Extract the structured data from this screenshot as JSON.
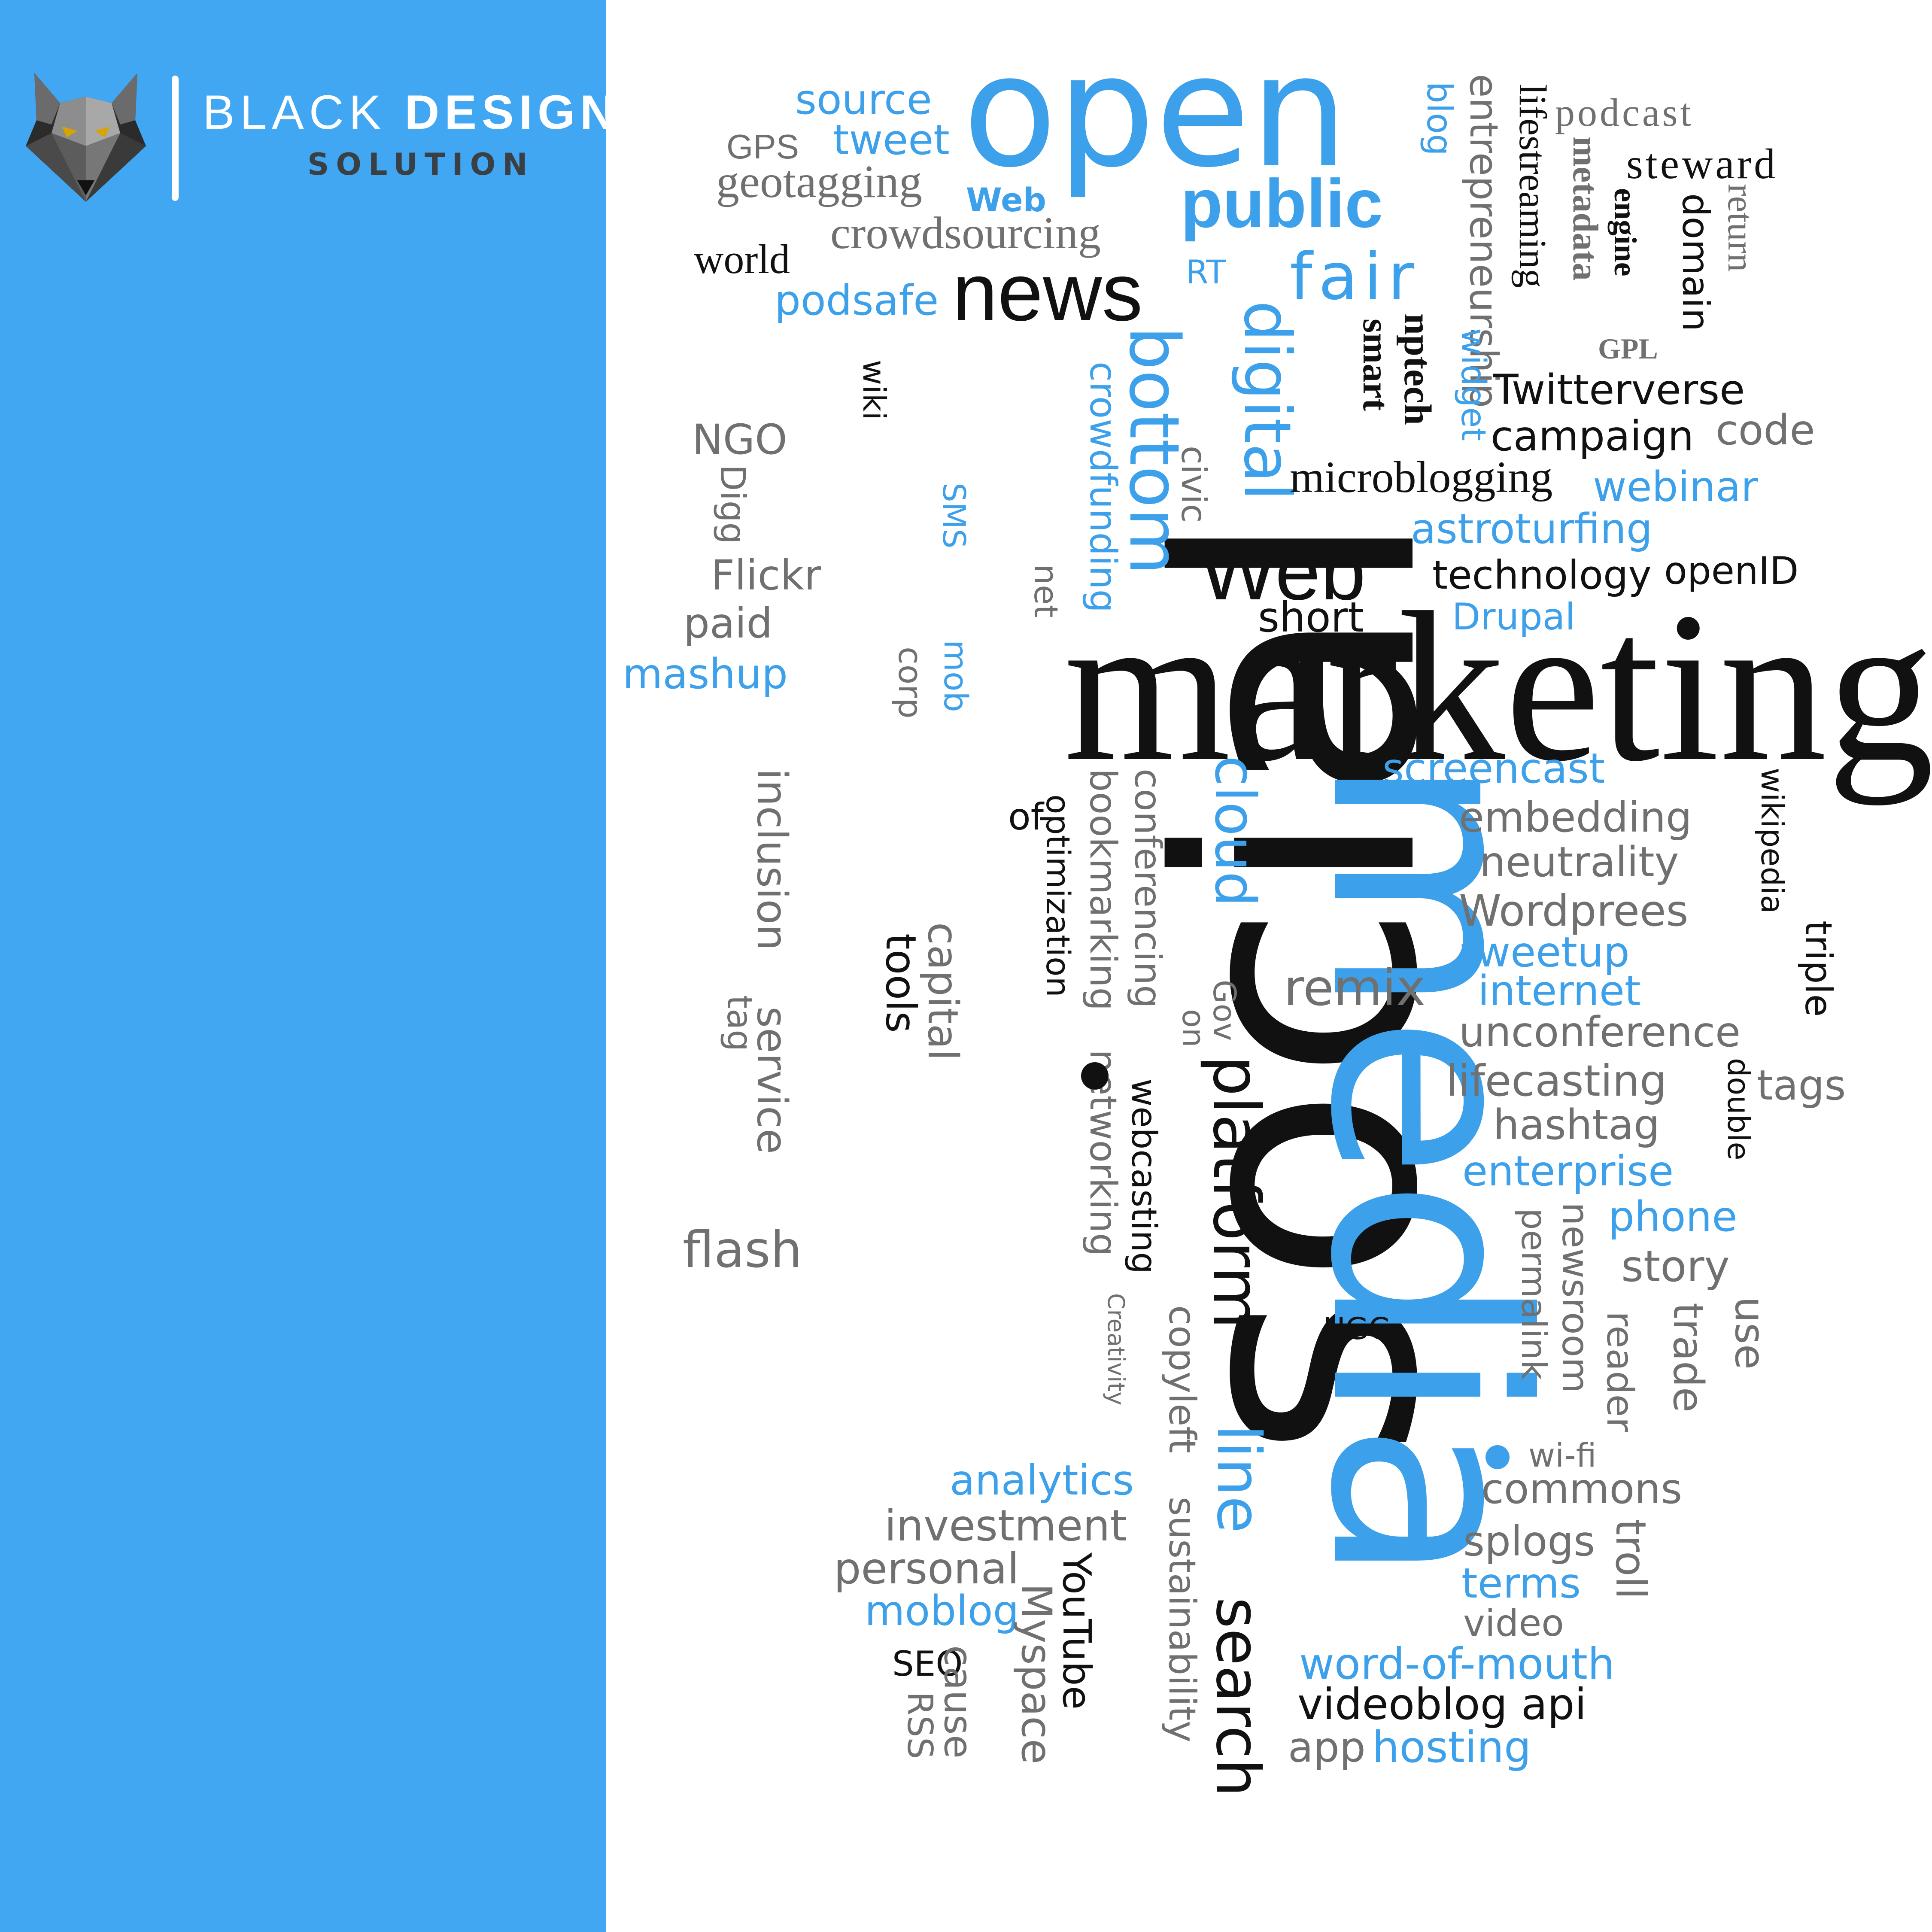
{
  "brand": {
    "name_light": "BLACK",
    "name_bold": "DESIGN",
    "tagline": "SOLUTION"
  },
  "palette": {
    "sidebar": "#42a7f3",
    "blue": "#3da0ea",
    "black": "#111111",
    "gray": "#707070"
  },
  "cloud": {
    "social": "social",
    "marketing": "marketing",
    "media": "media",
    "open": "open",
    "news": "news",
    "public": "public",
    "fair": "fair",
    "bottom": "bottom",
    "digital": "digital",
    "web_big": "Web",
    "platform": "platform",
    "search": "search",
    "line": "line",
    "cloud_word": "cloud",
    "source": "source",
    "tweet": "tweet",
    "gps": "GPS",
    "geotagging": "geotagging",
    "web_small": "Web",
    "crowdsourcing": "crowdsourcing",
    "world": "world",
    "podsafe": "podsafe",
    "rt": "RT",
    "blog": "blog",
    "entrepreneurship": "entrepreneurship",
    "lifestreaming": "lifestreaming",
    "metadata": "metadata",
    "podcast": "podcast",
    "engine": "engine",
    "steward": "steward",
    "domain": "domain",
    "return": "return",
    "gpl": "GPL",
    "twitterverse": "Twitterverse",
    "campaign": "campaign",
    "code": "code",
    "nptech": "nptech",
    "smart": "smart",
    "widget": "widget",
    "microblogging": "microblogging",
    "webinar": "webinar",
    "astroturfing": "astroturfing",
    "civic": "civic",
    "technology": "technology",
    "openid": "openID",
    "short": "short",
    "drupal": "Drupal",
    "crowdfunding": "crowdfunding",
    "wiki": "wiki",
    "ngo": "NGO",
    "digg": "Digg",
    "flickr": "Flickr",
    "paid": "paid",
    "mashup": "mashup",
    "sms": "SMS",
    "net": "net",
    "mob": "mob",
    "corp": "corp",
    "screencast": "screencast",
    "embedding": "embedding",
    "neutrality": "neutrality",
    "wordpress": "Wordprees",
    "tweetup": "tweetup",
    "internet": "internet",
    "unconference": "unconference",
    "lifecasting": "lifecasting",
    "hashtag": "hashtag",
    "enterprise": "enterprise",
    "phone": "phone",
    "story": "story",
    "wikipedia": "wikipedia",
    "triple": "triple",
    "tags": "tags",
    "double": "double",
    "use": "use",
    "trade": "trade",
    "reader": "reader",
    "newsroom": "newsroom",
    "permalink": "permalink",
    "wifi": "wi-fi",
    "commons": "commons",
    "splogs": "splogs",
    "troll": "troll",
    "terms": "terms",
    "video": "video",
    "word_of_mouth": "word-of-mouth",
    "videoblog_api": "videoblog api",
    "app": "app",
    "hosting": "hosting",
    "ugc": "UGC",
    "remix": "remix",
    "of": "of",
    "optimization": "optimization",
    "bookmarking": "bookmarking",
    "conferencing": "conferencing",
    "gov": "Gov",
    "on": "on",
    "networking": "networking",
    "webcasting": "webcasting",
    "copyleft": "copyleft",
    "creativity": "Creativity",
    "sustainability": "sustainability",
    "inclusion": "inclusion",
    "service": "service",
    "tag": "tag",
    "capital": "capital",
    "tools": "tools",
    "flash": "flash",
    "analytics": "analytics",
    "investment": "investment",
    "personal": "personal",
    "moblog": "moblog",
    "myspace": "Myspace",
    "youtube": "YouTube",
    "seo": "SEO",
    "cause": "cause",
    "rss": "RSS"
  }
}
